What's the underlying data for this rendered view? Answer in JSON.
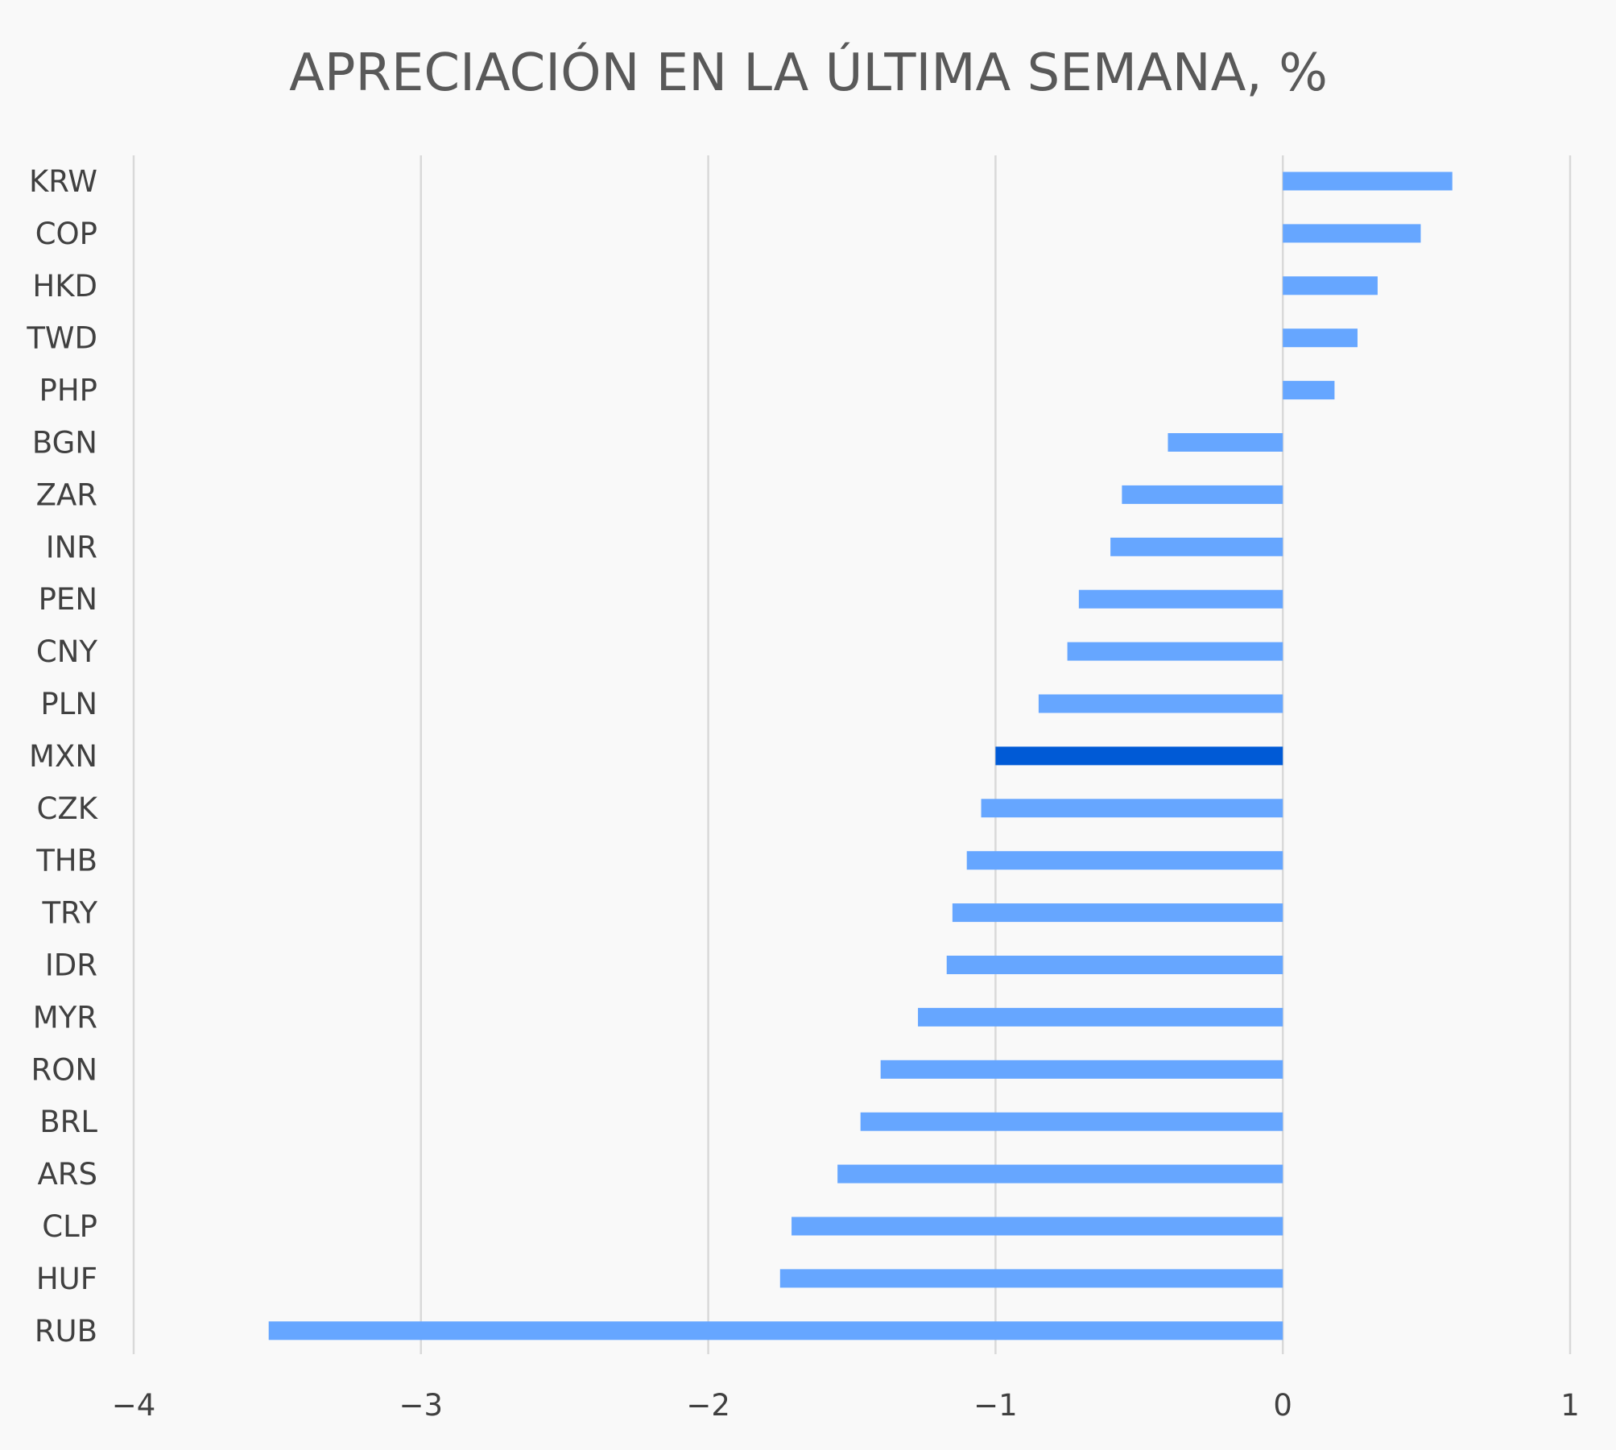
{
  "colors": {
    "background": "#f9f9f9",
    "bar": "#66a6ff",
    "highlight": "#005ad6",
    "gridline": "#d9d9d9",
    "text": "#404040",
    "title": "#595959"
  },
  "chart_data": {
    "type": "bar",
    "orientation": "horizontal",
    "title": "APRECIACIÓN EN LA ÚLTIMA SEMANA, %",
    "xlabel": "",
    "ylabel": "",
    "xlim": [
      -4,
      1
    ],
    "x_ticks": [
      "−4",
      "−3",
      "−2",
      "−1",
      "0",
      "1"
    ],
    "grid": "vertical",
    "legend": "none",
    "highlight_category": "MXN",
    "categories": [
      "KRW",
      "COP",
      "HKD",
      "TWD",
      "PHP",
      "BGN",
      "ZAR",
      "INR",
      "PEN",
      "CNY",
      "PLN",
      "MXN",
      "CZK",
      "THB",
      "TRY",
      "IDR",
      "MYR",
      "RON",
      "BRL",
      "ARS",
      "CLP",
      "HUF",
      "RUB"
    ],
    "values": [
      0.59,
      0.48,
      0.33,
      0.26,
      0.18,
      -0.4,
      -0.56,
      -0.6,
      -0.71,
      -0.75,
      -0.85,
      -1.0,
      -1.05,
      -1.1,
      -1.15,
      -1.17,
      -1.27,
      -1.4,
      -1.47,
      -1.55,
      -1.71,
      -1.75,
      -3.53
    ]
  }
}
